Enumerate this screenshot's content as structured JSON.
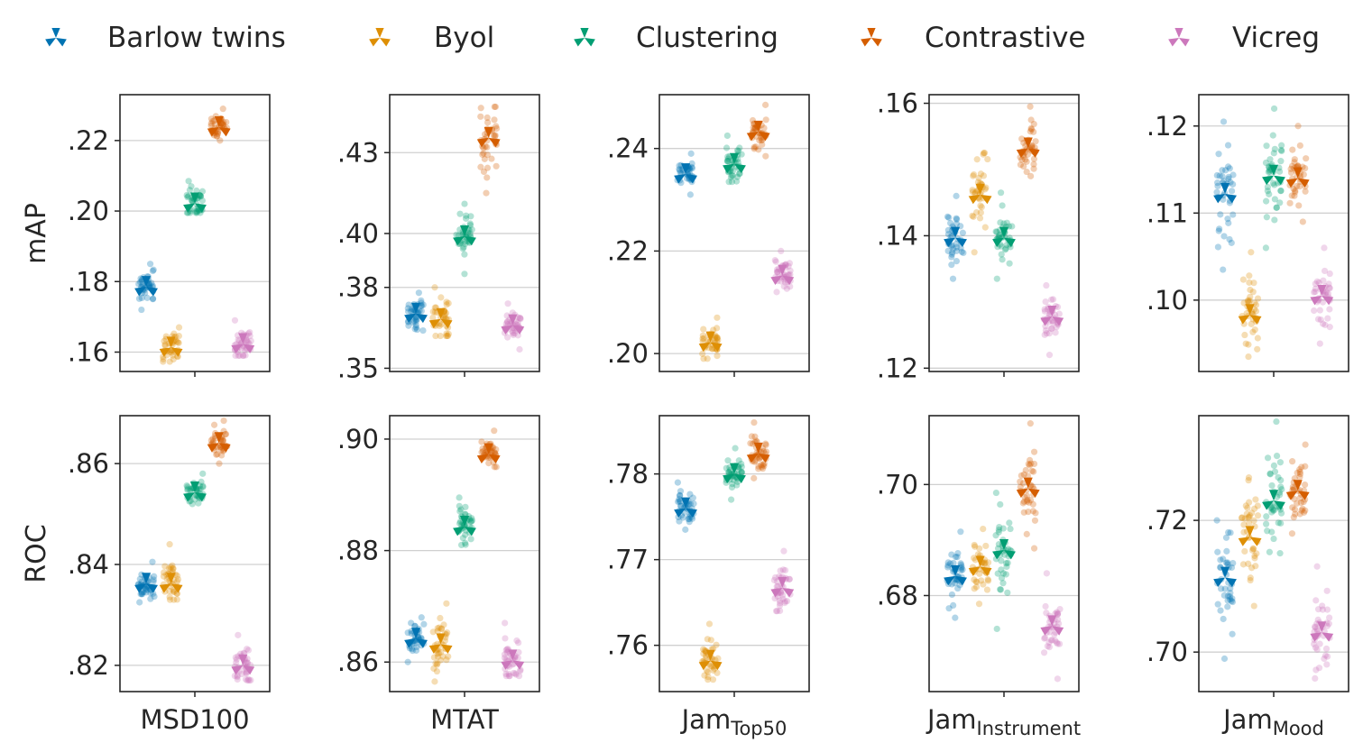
{
  "legend": [
    {
      "name": "Barlow twins",
      "color": "#0173b2"
    },
    {
      "name": "Byol",
      "color": "#de8f05"
    },
    {
      "name": "Clustering",
      "color": "#029e73"
    },
    {
      "name": "Contrastive",
      "color": "#d55e00"
    },
    {
      "name": "Vicreg",
      "color": "#cc78bc"
    }
  ],
  "rows": [
    "mAP",
    "ROC"
  ],
  "columns": [
    {
      "main": "MSD100",
      "sub": ""
    },
    {
      "main": "MTAT",
      "sub": ""
    },
    {
      "main": "Jam",
      "sub": "Top50"
    },
    {
      "main": "Jam",
      "sub": "Instrument"
    },
    {
      "main": "Jam",
      "sub": "Mood"
    }
  ],
  "chart_data": [
    {
      "type": "scatter",
      "row": "mAP",
      "dataset": "MSD100",
      "ylim": [
        0.1545,
        0.233
      ],
      "yticks": [
        0.16,
        0.18,
        0.2,
        0.22
      ],
      "yticklabels": [
        ".16",
        ".18",
        ".20",
        ".22"
      ],
      "series": [
        {
          "name": "Barlow twins",
          "mean": 0.1785,
          "lo": 0.172,
          "hi": 0.185
        },
        {
          "name": "Byol",
          "mean": 0.1613,
          "lo": 0.1573,
          "hi": 0.167
        },
        {
          "name": "Clustering",
          "mean": 0.2022,
          "lo": 0.1995,
          "hi": 0.2085
        },
        {
          "name": "Contrastive",
          "mean": 0.2238,
          "lo": 0.22,
          "hi": 0.229
        },
        {
          "name": "Vicreg",
          "mean": 0.1623,
          "lo": 0.159,
          "hi": 0.169
        }
      ]
    },
    {
      "type": "scatter",
      "row": "mAP",
      "dataset": "MTAT",
      "ylim": [
        0.3488,
        0.4515
      ],
      "yticks": [
        0.35,
        0.38,
        0.4,
        0.43
      ],
      "yticklabels": [
        ".35",
        ".38",
        ".40",
        ".43"
      ],
      "series": [
        {
          "name": "Barlow twins",
          "mean": 0.3703,
          "lo": 0.364,
          "hi": 0.378
        },
        {
          "name": "Byol",
          "mean": 0.3683,
          "lo": 0.362,
          "hi": 0.38
        },
        {
          "name": "Clustering",
          "mean": 0.399,
          "lo": 0.385,
          "hi": 0.411
        },
        {
          "name": "Contrastive",
          "mean": 0.4355,
          "lo": 0.415,
          "hi": 0.447
        },
        {
          "name": "Vicreg",
          "mean": 0.366,
          "lo": 0.357,
          "hi": 0.374
        }
      ]
    },
    {
      "type": "scatter",
      "row": "mAP",
      "dataset": "JamTop50",
      "ylim": [
        0.1965,
        0.2505
      ],
      "yticks": [
        0.2,
        0.22,
        0.24
      ],
      "yticklabels": [
        ".20",
        ".22",
        ".24"
      ],
      "series": [
        {
          "name": "Barlow twins",
          "mean": 0.235,
          "lo": 0.231,
          "hi": 0.239
        },
        {
          "name": "Byol",
          "mean": 0.2022,
          "lo": 0.199,
          "hi": 0.207
        },
        {
          "name": "Clustering",
          "mean": 0.237,
          "lo": 0.2335,
          "hi": 0.2425
        },
        {
          "name": "Contrastive",
          "mean": 0.2433,
          "lo": 0.2385,
          "hi": 0.2485
        },
        {
          "name": "Vicreg",
          "mean": 0.2152,
          "lo": 0.212,
          "hi": 0.22
        }
      ]
    },
    {
      "type": "scatter",
      "row": "mAP",
      "dataset": "JamInstrument",
      "ylim": [
        0.1195,
        0.1613
      ],
      "yticks": [
        0.12,
        0.14,
        0.16
      ],
      "yticklabels": [
        ".12",
        ".14",
        ".16"
      ],
      "series": [
        {
          "name": "Barlow twins",
          "mean": 0.1397,
          "lo": 0.1335,
          "hi": 0.146
        },
        {
          "name": "Byol",
          "mean": 0.1462,
          "lo": 0.1375,
          "hi": 0.1525
        },
        {
          "name": "Clustering",
          "mean": 0.1397,
          "lo": 0.1335,
          "hi": 0.1465
        },
        {
          "name": "Contrastive",
          "mean": 0.1532,
          "lo": 0.149,
          "hi": 0.1595
        },
        {
          "name": "Vicreg",
          "mean": 0.1278,
          "lo": 0.122,
          "hi": 0.1325
        }
      ]
    },
    {
      "type": "scatter",
      "row": "mAP",
      "dataset": "JamMood",
      "ylim": [
        0.0918,
        0.1236
      ],
      "yticks": [
        0.1,
        0.11,
        0.12
      ],
      "yticklabels": [
        ".10",
        ".11",
        ".12"
      ],
      "series": [
        {
          "name": "Barlow twins",
          "mean": 0.1122,
          "lo": 0.1035,
          "hi": 0.1205
        },
        {
          "name": "Byol",
          "mean": 0.0983,
          "lo": 0.0935,
          "hi": 0.1055
        },
        {
          "name": "Clustering",
          "mean": 0.1143,
          "lo": 0.106,
          "hi": 0.122
        },
        {
          "name": "Contrastive",
          "mean": 0.114,
          "lo": 0.109,
          "hi": 0.12
        },
        {
          "name": "Vicreg",
          "mean": 0.1005,
          "lo": 0.095,
          "hi": 0.106
        }
      ]
    },
    {
      "type": "scatter",
      "row": "ROC",
      "dataset": "MSD100",
      "ylim": [
        0.8148,
        0.8695
      ],
      "yticks": [
        0.82,
        0.84,
        0.86
      ],
      "yticklabels": [
        ".82",
        ".84",
        ".86"
      ],
      "series": [
        {
          "name": "Barlow twins",
          "mean": 0.8362,
          "lo": 0.8325,
          "hi": 0.8405
        },
        {
          "name": "Byol",
          "mean": 0.8362,
          "lo": 0.833,
          "hi": 0.844
        },
        {
          "name": "Clustering",
          "mean": 0.8543,
          "lo": 0.852,
          "hi": 0.858
        },
        {
          "name": "Contrastive",
          "mean": 0.8641,
          "lo": 0.86,
          "hi": 0.8685
        },
        {
          "name": "Vicreg",
          "mean": 0.82,
          "lo": 0.817,
          "hi": 0.826
        }
      ]
    },
    {
      "type": "scatter",
      "row": "ROC",
      "dataset": "MTAT",
      "ylim": [
        0.8547,
        0.9042
      ],
      "yticks": [
        0.86,
        0.88,
        0.9
      ],
      "yticklabels": [
        ".86",
        ".88",
        ".90"
      ],
      "series": [
        {
          "name": "Barlow twins",
          "mean": 0.8642,
          "lo": 0.86,
          "hi": 0.868
        },
        {
          "name": "Byol",
          "mean": 0.8632,
          "lo": 0.8565,
          "hi": 0.8705
        },
        {
          "name": "Clustering",
          "mean": 0.8843,
          "lo": 0.881,
          "hi": 0.8895
        },
        {
          "name": "Contrastive",
          "mean": 0.8973,
          "lo": 0.895,
          "hi": 0.9015
        },
        {
          "name": "Vicreg",
          "mean": 0.8603,
          "lo": 0.8575,
          "hi": 0.867
        }
      ]
    },
    {
      "type": "scatter",
      "row": "ROC",
      "dataset": "JamTop50",
      "ylim": [
        0.7546,
        0.7868
      ],
      "yticks": [
        0.76,
        0.77,
        0.78
      ],
      "yticklabels": [
        ".76",
        ".77",
        ".78"
      ],
      "series": [
        {
          "name": "Barlow twins",
          "mean": 0.776,
          "lo": 0.7735,
          "hi": 0.779
        },
        {
          "name": "Byol",
          "mean": 0.7582,
          "lo": 0.756,
          "hi": 0.7625
        },
        {
          "name": "Clustering",
          "mean": 0.78,
          "lo": 0.777,
          "hi": 0.783
        },
        {
          "name": "Contrastive",
          "mean": 0.7824,
          "lo": 0.7795,
          "hi": 0.786
        },
        {
          "name": "Vicreg",
          "mean": 0.7667,
          "lo": 0.764,
          "hi": 0.771
        }
      ]
    },
    {
      "type": "scatter",
      "row": "ROC",
      "dataset": "JamInstrument",
      "ylim": [
        0.6627,
        0.7124
      ],
      "yticks": [
        0.68,
        0.7
      ],
      "yticklabels": [
        ".68",
        ".70"
      ],
      "series": [
        {
          "name": "Barlow twins",
          "mean": 0.6835,
          "lo": 0.676,
          "hi": 0.6915
        },
        {
          "name": "Byol",
          "mean": 0.6852,
          "lo": 0.6785,
          "hi": 0.692
        },
        {
          "name": "Clustering",
          "mean": 0.6882,
          "lo": 0.674,
          "hi": 0.6985
        },
        {
          "name": "Contrastive",
          "mean": 0.6993,
          "lo": 0.6885,
          "hi": 0.711
        },
        {
          "name": "Vicreg",
          "mean": 0.6745,
          "lo": 0.665,
          "hi": 0.684
        }
      ]
    },
    {
      "type": "scatter",
      "row": "ROC",
      "dataset": "JamMood",
      "ylim": [
        0.694,
        0.7359
      ],
      "yticks": [
        0.7,
        0.72
      ],
      "yticklabels": [
        ".70",
        ".72"
      ],
      "series": [
        {
          "name": "Barlow twins",
          "mean": 0.7113,
          "lo": 0.699,
          "hi": 0.72
        },
        {
          "name": "Byol",
          "mean": 0.7175,
          "lo": 0.707,
          "hi": 0.7265
        },
        {
          "name": "Clustering",
          "mean": 0.723,
          "lo": 0.715,
          "hi": 0.735
        },
        {
          "name": "Contrastive",
          "mean": 0.7245,
          "lo": 0.718,
          "hi": 0.7315
        },
        {
          "name": "Vicreg",
          "mean": 0.703,
          "lo": 0.696,
          "hi": 0.713
        }
      ]
    }
  ]
}
